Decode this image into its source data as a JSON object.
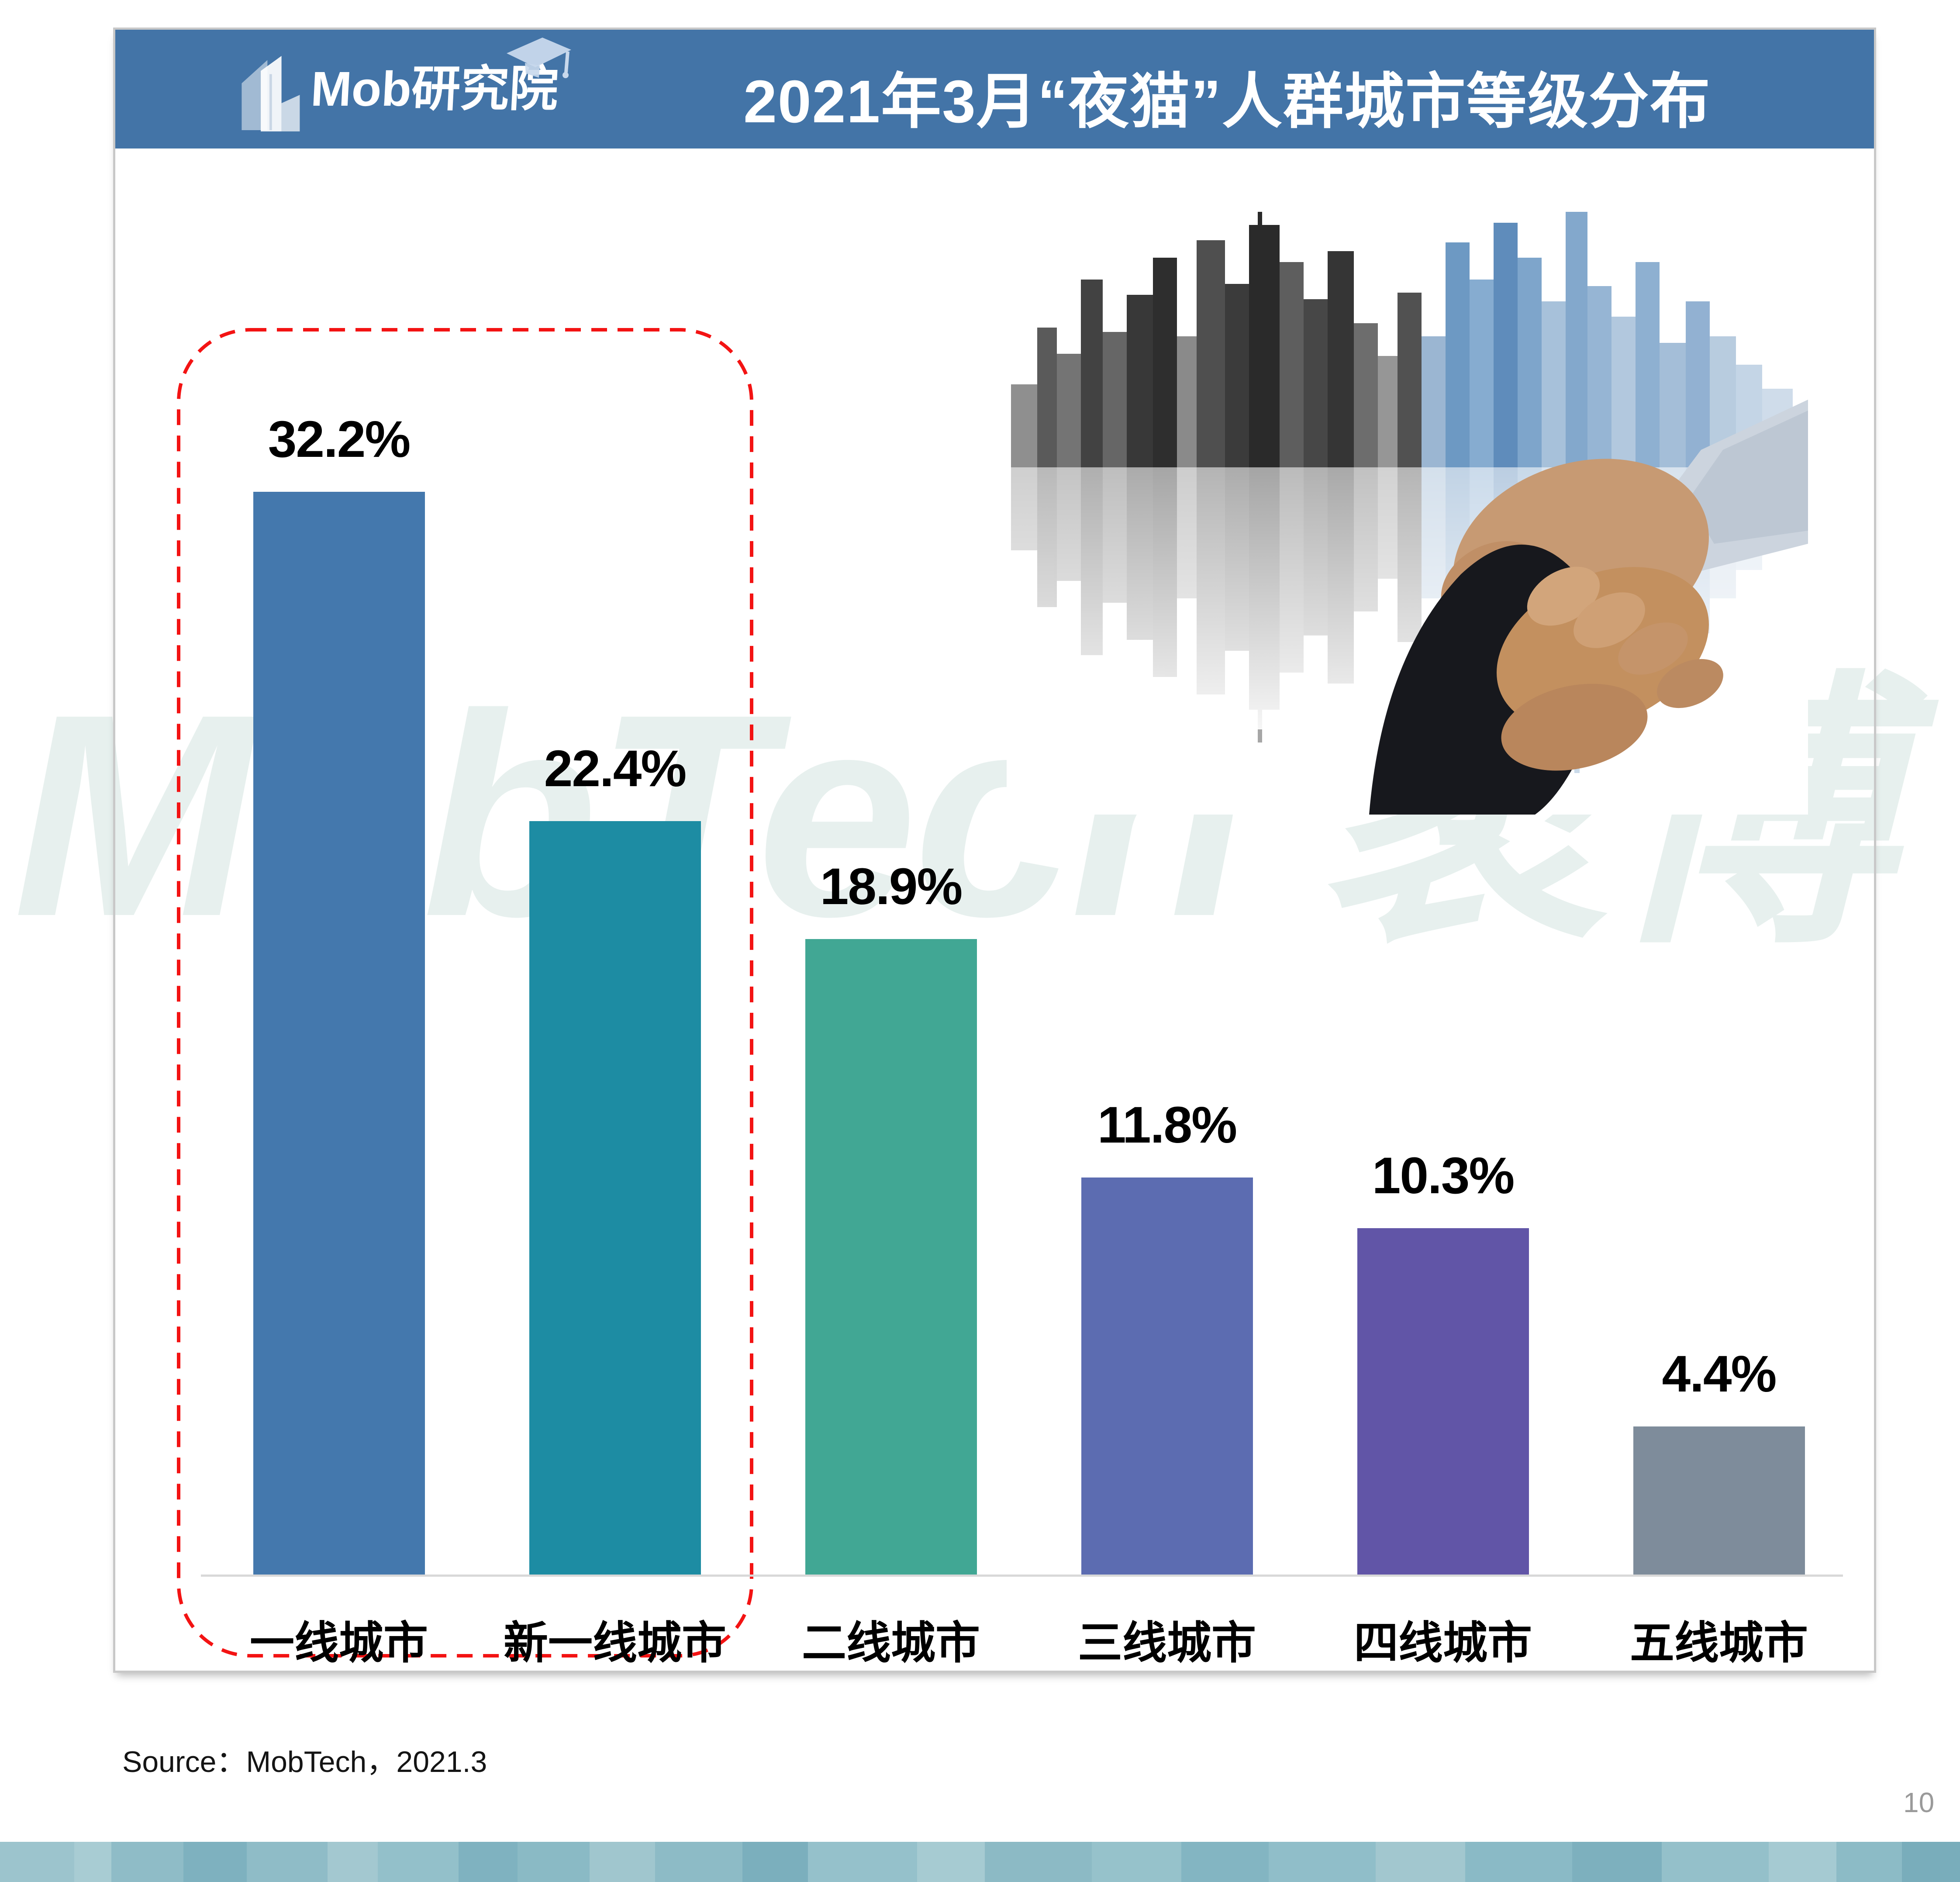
{
  "header": {
    "logo_text": "Mob研究院",
    "title": "2021年3月“夜猫”人群城市等级分布"
  },
  "watermark": {
    "text": "MobTech 袤博"
  },
  "chart_data": {
    "type": "bar",
    "title": "2021年3月“夜猫”人群城市等级分布",
    "categories": [
      "一线城市",
      "新一线城市",
      "二线城市",
      "三线城市",
      "四线城市",
      "五线城市"
    ],
    "values": [
      32.2,
      22.4,
      18.9,
      11.8,
      10.3,
      4.4
    ],
    "value_labels": [
      "32.2%",
      "22.4%",
      "18.9%",
      "11.8%",
      "10.3%",
      "4.4%"
    ],
    "unit": "%",
    "xlabel": "",
    "ylabel": "",
    "ylim": [
      0,
      34
    ],
    "grid": false,
    "legend": false,
    "bar_colors": [
      "#4478AD",
      "#1D8CA3",
      "#41A794",
      "#5C6CB1",
      "#6155A7",
      "#7E8C9B"
    ],
    "highlighted_categories": [
      "一线城市",
      "新一线城市"
    ]
  },
  "footer": {
    "source": "Source：MobTech，2021.3",
    "page_number": "10"
  },
  "colors": {
    "header_bg": "#4374A7",
    "highlight_box": "#F31313",
    "axis_line": "#d8d8d8",
    "value_label": "#000000"
  }
}
